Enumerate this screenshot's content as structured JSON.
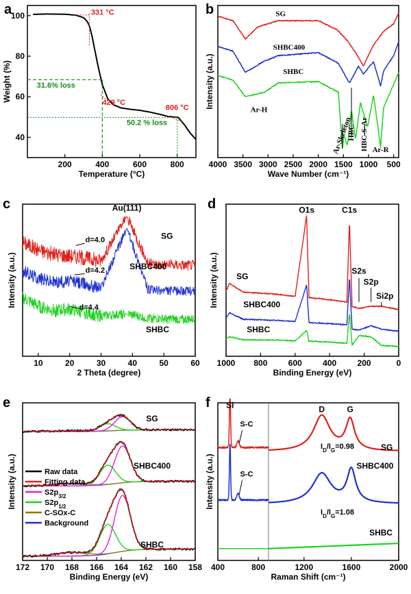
{
  "panels": [
    {
      "label": "a",
      "xlabel": "Temperature (°C)",
      "ylabel": "Weight (%)",
      "xlim": [
        0,
        900
      ],
      "ylim": [
        30,
        105
      ],
      "xticks": [
        200,
        400,
        600,
        800
      ],
      "yticks": [
        40,
        60,
        80,
        100
      ],
      "colors": {
        "curve": "#000000",
        "temp": "#e0201b",
        "loss": "#1a8a1a"
      },
      "annotations": {
        "t1": "331 °C",
        "t2": "429 °C",
        "t3": "806 °C",
        "loss1": "31.6% loss",
        "loss2": "50.2 % loss"
      }
    },
    {
      "label": "b",
      "xlabel": "Wave Number (cm⁻¹)",
      "ylabel": "Intensity (a.u.)",
      "xlim": [
        4000,
        400
      ],
      "xticks": [
        4000,
        3500,
        3000,
        2500,
        2000,
        1500,
        1000,
        500
      ],
      "series": [
        {
          "name": "SG",
          "color": "#e0201b"
        },
        {
          "name": "SHBC400",
          "color": "#1f2fd1"
        },
        {
          "name": "SHBC",
          "color": "#1fd11f"
        }
      ],
      "annotations": {
        "arh": "Ar-H",
        "skel": "Ar-Skeleton",
        "hbc": "HBC",
        "hbcs": "HBC-S-Ar",
        "arr": "Ar-R"
      }
    },
    {
      "label": "c",
      "xlabel": "2 Theta (degree)",
      "ylabel": "Intensity (a.u.)",
      "xlim": [
        5,
        60
      ],
      "xticks": [
        10,
        20,
        30,
        40,
        50,
        60
      ],
      "series": [
        {
          "name": "SG",
          "color": "#e0201b"
        },
        {
          "name": "SHBC400",
          "color": "#1f2fd1"
        },
        {
          "name": "SHBC",
          "color": "#1fd11f"
        }
      ],
      "annotations": {
        "au": "Au(111)",
        "d1": "d=4.0",
        "d2": "d=4.2",
        "d3": "d=4.4"
      }
    },
    {
      "label": "d",
      "xlabel": "Binding Energy (eV)",
      "ylabel": "Intensity (a.u.)",
      "xlim": [
        1000,
        0
      ],
      "xticks": [
        1000,
        800,
        600,
        400,
        200,
        0
      ],
      "series": [
        {
          "name": "SG",
          "color": "#e0201b"
        },
        {
          "name": "SHBC400",
          "color": "#1f2fd1"
        },
        {
          "name": "SHBC",
          "color": "#1fd11f"
        }
      ],
      "annotations": {
        "o1s": "O1s",
        "c1s": "C1s",
        "s2s": "S2s",
        "s2p": "S2p",
        "si2p": "Si2p"
      }
    },
    {
      "label": "e",
      "xlabel": "Binding Energy (eV)",
      "ylabel": "Intensity (a.u.)",
      "xlim": [
        172,
        158
      ],
      "xticks": [
        172,
        170,
        168,
        166,
        164,
        162,
        160,
        158
      ],
      "sample_labels": [
        "SG",
        "SHBC400",
        "SHBC"
      ],
      "legend": [
        {
          "name": "Raw data",
          "color": "#000000"
        },
        {
          "name": "Fitting data",
          "color": "#e0201b"
        },
        {
          "name": "S2p3/2",
          "color": "#e020e0"
        },
        {
          "name": "S2p1/2",
          "color": "#1fd11f"
        },
        {
          "name": "C-SOx-C",
          "color": "#8a7a00"
        },
        {
          "name": "Background",
          "color": "#1f2fd1"
        }
      ]
    },
    {
      "label": "f",
      "xlabel": "Raman Shift (cm⁻¹)",
      "ylabel": "Intensity (a.u.)",
      "xticks": [
        400,
        800,
        1200,
        1600,
        2000
      ],
      "series": [
        {
          "name": "SG",
          "color": "#e0201b"
        },
        {
          "name": "SHBC400",
          "color": "#1f2fd1"
        },
        {
          "name": "SHBC",
          "color": "#1fd11f"
        }
      ],
      "annotations": {
        "si": "Si",
        "sc1": "S-C",
        "sc2": "S-C",
        "d": "D",
        "g": "G",
        "r1": "ID/IG=0.98",
        "r2": "ID/IG=1.08"
      }
    }
  ],
  "chart_data": [
    {
      "type": "line",
      "panel": "a",
      "xlabel": "Temperature (°C)",
      "ylabel": "Weight (%)",
      "xlim": [
        0,
        900
      ],
      "ylim": [
        30,
        105
      ],
      "series": [
        {
          "name": "",
          "x": [
            30,
            100,
            200,
            260,
            300,
            320,
            331,
            345,
            360,
            380,
            400,
            429,
            460,
            500,
            550,
            600,
            650,
            700,
            750,
            806,
            840,
            870,
            900
          ],
          "y": [
            100.6,
            100.8,
            100.7,
            100.2,
            99,
            97,
            95,
            90,
            83,
            74,
            66,
            59,
            56,
            54.5,
            53.8,
            53.3,
            52.5,
            51.5,
            50.3,
            49.8,
            46,
            42,
            39
          ]
        }
      ],
      "markers": {
        "onset_temps": [
          331,
          429,
          806
        ],
        "losses": [
          "31.6% loss",
          "50.2 % loss"
        ],
        "loss_levels": [
          68.4,
          49.8
        ]
      }
    },
    {
      "type": "line",
      "panel": "b",
      "xlabel": "Wave Number (cm⁻¹)",
      "ylabel": "Intensity (a.u.)",
      "xlim": [
        4000,
        400
      ],
      "series": [
        {
          "name": "SG",
          "x": [
            4000,
            3700,
            3450,
            3200,
            2800,
            2000,
            1620,
            1400,
            1200,
            1100,
            1050,
            900,
            700,
            500,
            400
          ],
          "y": [
            9.3,
            9.0,
            7.8,
            8.6,
            9.0,
            9.0,
            8.4,
            7.6,
            6.6,
            6.0,
            6.4,
            7.4,
            8.3,
            8.8,
            9.5
          ]
        },
        {
          "name": "SHBC400",
          "x": [
            4000,
            3700,
            3450,
            3100,
            2800,
            2000,
            1600,
            1500,
            1380,
            1200,
            1100,
            900,
            760,
            700,
            500,
            400
          ],
          "y": [
            7.3,
            7.0,
            5.6,
            6.3,
            6.7,
            6.9,
            6.2,
            5.6,
            4.9,
            6.0,
            5.5,
            6.3,
            4.7,
            5.7,
            6.7,
            7.6
          ]
        },
        {
          "name": "SHBC",
          "x": [
            4000,
            3700,
            3450,
            3070,
            2800,
            2000,
            1600,
            1520,
            1490,
            1420,
            1340,
            1260,
            1160,
            1020,
            900,
            760,
            700,
            500,
            400
          ],
          "y": [
            5.4,
            5.1,
            4.0,
            4.3,
            4.9,
            5.0,
            4.3,
            0.6,
            1.5,
            0.8,
            3.1,
            1.2,
            3.6,
            2.0,
            4.1,
            0.7,
            3.3,
            4.8,
            5.6
          ]
        }
      ]
    },
    {
      "type": "line",
      "panel": "c",
      "xlabel": "2 Theta (degree)",
      "ylabel": "Intensity (a.u.)",
      "xlim": [
        5,
        60
      ],
      "series": [
        {
          "name": "SG",
          "x": [
            5,
            10,
            15,
            22,
            30,
            38.2,
            45,
            55,
            60
          ],
          "y": [
            10.5,
            9.8,
            9.4,
            9.2,
            8.8,
            12.9,
            8.5,
            8.4,
            8.4
          ]
        },
        {
          "name": "SHBC400",
          "x": [
            5,
            10,
            15,
            21,
            30,
            38.2,
            45,
            55,
            60
          ],
          "y": [
            7.8,
            7.2,
            6.8,
            6.9,
            6.3,
            11.8,
            6.1,
            6.0,
            6.0
          ]
        },
        {
          "name": "SHBC",
          "x": [
            5,
            10,
            15,
            20,
            30,
            38.2,
            45,
            55,
            60
          ],
          "y": [
            5.4,
            4.6,
            4.2,
            4.3,
            3.7,
            3.9,
            3.5,
            3.4,
            3.4
          ]
        }
      ],
      "peaks": {
        "Au(111)": 38.2,
        "d=4.0": 22,
        "d=4.2": 21,
        "d=4.4": 20
      }
    },
    {
      "type": "line",
      "panel": "d",
      "xlabel": "Binding Energy (eV)",
      "ylabel": "Intensity (a.u.)",
      "xlim": [
        1000,
        0
      ],
      "series": [
        {
          "name": "SG",
          "x": [
            1000,
            980,
            900,
            700,
            600,
            533,
            520,
            400,
            300,
            285,
            270,
            230,
            160,
            100,
            0
          ],
          "y": [
            6.0,
            6.7,
            5.9,
            5.7,
            5.5,
            13.0,
            5.4,
            5.2,
            5.0,
            12.5,
            4.6,
            4.4,
            4.6,
            4.6,
            4.3
          ]
        },
        {
          "name": "SHBC400",
          "x": [
            1000,
            980,
            900,
            700,
            600,
            533,
            520,
            400,
            300,
            285,
            270,
            230,
            160,
            100,
            0
          ],
          "y": [
            3.5,
            4.0,
            3.4,
            3.3,
            3.2,
            6.6,
            3.1,
            3.0,
            2.9,
            7.3,
            2.5,
            2.4,
            2.8,
            2.5,
            2.3
          ]
        },
        {
          "name": "SHBC",
          "x": [
            1000,
            980,
            900,
            700,
            600,
            533,
            520,
            400,
            300,
            285,
            270,
            230,
            160,
            100,
            0
          ],
          "y": [
            1.6,
            1.8,
            1.5,
            1.5,
            1.4,
            2.4,
            1.4,
            1.3,
            1.2,
            4.0,
            1.0,
            1.9,
            1.8,
            1.0,
            0.9
          ]
        }
      ]
    },
    {
      "type": "line",
      "panel": "e",
      "xlabel": "Binding Energy (eV)",
      "ylabel": "Intensity (a.u.)",
      "xlim": [
        172,
        158
      ],
      "samples": [
        {
          "name": "SG",
          "offset": 9.0,
          "raw_peak_height": 1.0,
          "s2p32_center": 163.9,
          "s2p12_center": 165.1,
          "csox_center": 168.0
        },
        {
          "name": "SHBC400",
          "offset": 5.2,
          "raw_peak_height": 2.7,
          "s2p32_center": 163.9,
          "s2p12_center": 165.1,
          "csox_center": 168.0
        },
        {
          "name": "SHBC",
          "offset": 0.3,
          "raw_peak_height": 4.1,
          "s2p32_center": 163.9,
          "s2p12_center": 165.1,
          "csox_center": 168.0
        }
      ]
    },
    {
      "type": "line",
      "panel": "f",
      "xlabel": "Raman Shift (cm⁻¹)",
      "ylabel": "Intensity (a.u.)",
      "series": [
        {
          "name": "SG",
          "D_position": 1350,
          "G_position": 1590,
          "ID_IG": 0.98
        },
        {
          "name": "SHBC400",
          "D_position": 1350,
          "G_position": 1600,
          "ID_IG": 1.08
        },
        {
          "name": "SHBC",
          "D_position": null,
          "G_position": null
        }
      ],
      "peaks": {
        "Si": 520,
        "S-C": 600
      }
    }
  ]
}
